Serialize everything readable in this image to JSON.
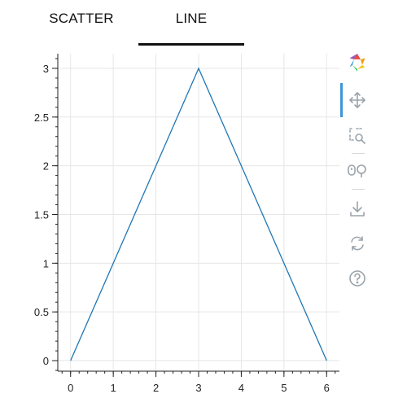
{
  "tabs": [
    {
      "label": "SCATTER",
      "active": false
    },
    {
      "label": "LINE",
      "active": true
    }
  ],
  "toolbar": {
    "tools": [
      {
        "icon": "bokeh-logo-icon",
        "active": false
      },
      {
        "icon": "pan-icon",
        "active": true
      },
      {
        "icon": "box-zoom-icon",
        "active": false
      },
      {
        "icon": "wheel-zoom-icon",
        "active": false
      },
      {
        "icon": "save-icon",
        "active": false
      },
      {
        "icon": "reset-icon",
        "active": false
      },
      {
        "icon": "help-icon",
        "active": false
      }
    ],
    "active_color": "#3f95d6",
    "icon_color": "#9aa3ab"
  },
  "chart_data": {
    "type": "line",
    "x": [
      0,
      1,
      2,
      3,
      4,
      5,
      6
    ],
    "series": [
      {
        "values": [
          0,
          1,
          2,
          3,
          2,
          1,
          0
        ],
        "color": "#1f77b4"
      }
    ],
    "xlim": [
      -0.3,
      6.3
    ],
    "ylim": [
      -0.1,
      3.15
    ],
    "xticks": [
      "0",
      "1",
      "2",
      "3",
      "4",
      "5",
      "6"
    ],
    "yticks": [
      "0",
      "0.5",
      "1",
      "1.5",
      "2",
      "2.5",
      "3"
    ],
    "xlabel": "",
    "ylabel": "",
    "title": "",
    "grid": true,
    "grid_color": "#e6e6e6"
  }
}
